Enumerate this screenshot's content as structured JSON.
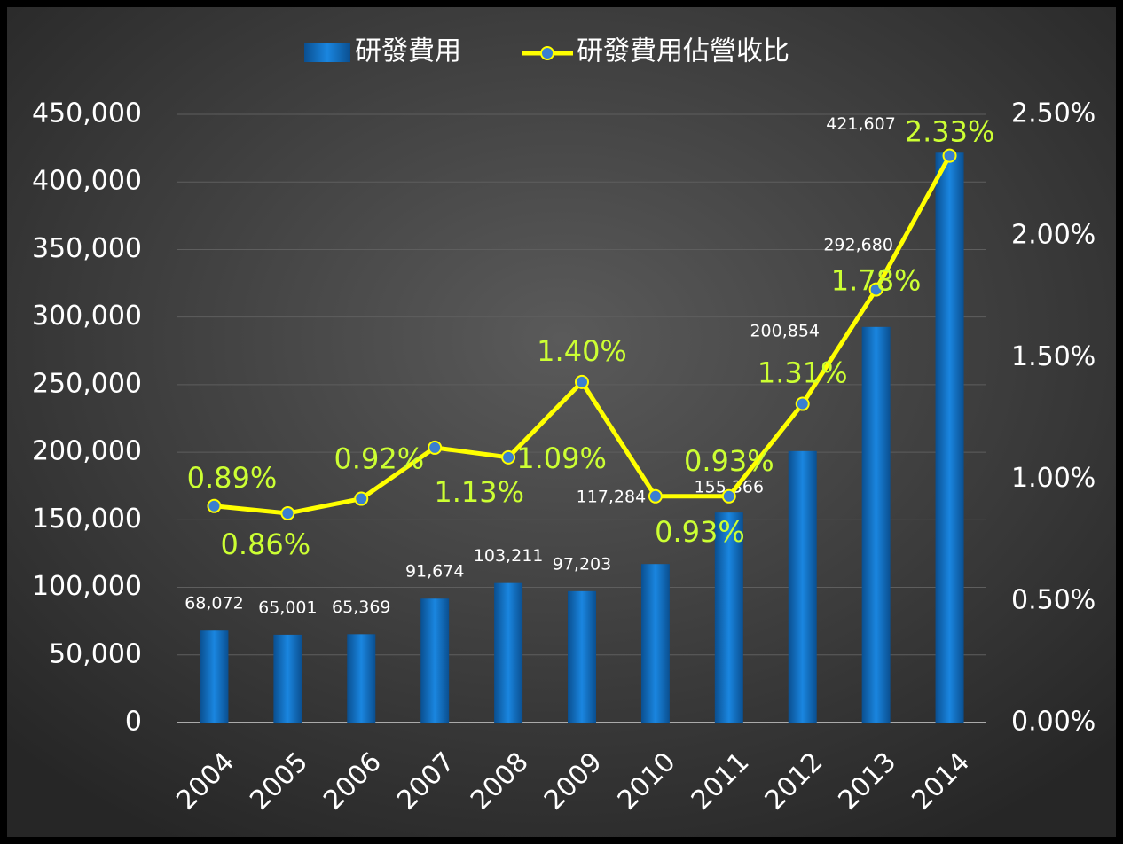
{
  "chart_data": {
    "type": "bar_line",
    "categories": [
      "2004",
      "2005",
      "2006",
      "2007",
      "2008",
      "2009",
      "2010",
      "2011",
      "2012",
      "2013",
      "2014"
    ],
    "series": [
      {
        "name": "研發費用",
        "color": "#0a6fc4",
        "type": "bar",
        "values": [
          68072,
          65001,
          65369,
          91674,
          103211,
          97203,
          117284,
          155366,
          200854,
          292680,
          421607
        ],
        "value_labels": [
          "68,072",
          "65,001",
          "65,369",
          "91,674",
          "103,211",
          "97,203",
          "117,284",
          "155,366",
          "200,854",
          "292,680",
          "421,607"
        ]
      },
      {
        "name": "研發費用佔營收比",
        "color": "#ffff00",
        "type": "line",
        "axis": "y2",
        "values": [
          0.89,
          0.86,
          0.92,
          1.13,
          1.09,
          1.4,
          0.93,
          0.93,
          1.31,
          1.78,
          2.33
        ],
        "value_labels": [
          "0.89%",
          "0.86%",
          "0.92%",
          "1.13%",
          "1.09%",
          "1.40%",
          "0.93%",
          "0.93%",
          "1.31%",
          "1.78%",
          "2.33%"
        ]
      }
    ],
    "ylim": [
      0,
      450000
    ],
    "yticks": [
      0,
      {
        "value": 50000,
        "label": "50,000"
      },
      {
        "value": 100000,
        "label": "100,000"
      },
      {
        "value": 150000,
        "label": "150,000"
      },
      {
        "value": 200000,
        "label": "200,000"
      },
      {
        "value": 250000,
        "label": "250,000"
      },
      {
        "value": 300000,
        "label": "300,000"
      },
      {
        "value": 350000,
        "label": "350,000"
      },
      {
        "value": 400000,
        "label": "400,000"
      },
      {
        "value": 450000,
        "label": "450,000"
      }
    ],
    "y2lim": [
      0,
      2.5
    ],
    "y2ticks": [
      {
        "value": 0,
        "label": "0.00%"
      },
      {
        "value": 0.5,
        "label": "0.50%"
      },
      {
        "value": 1,
        "label": "1.00%"
      },
      {
        "value": 1.5,
        "label": "1.50%"
      },
      {
        "value": 2,
        "label": "2.00%"
      },
      {
        "value": 2.5,
        "label": "2.50%"
      }
    ],
    "grid": true
  }
}
